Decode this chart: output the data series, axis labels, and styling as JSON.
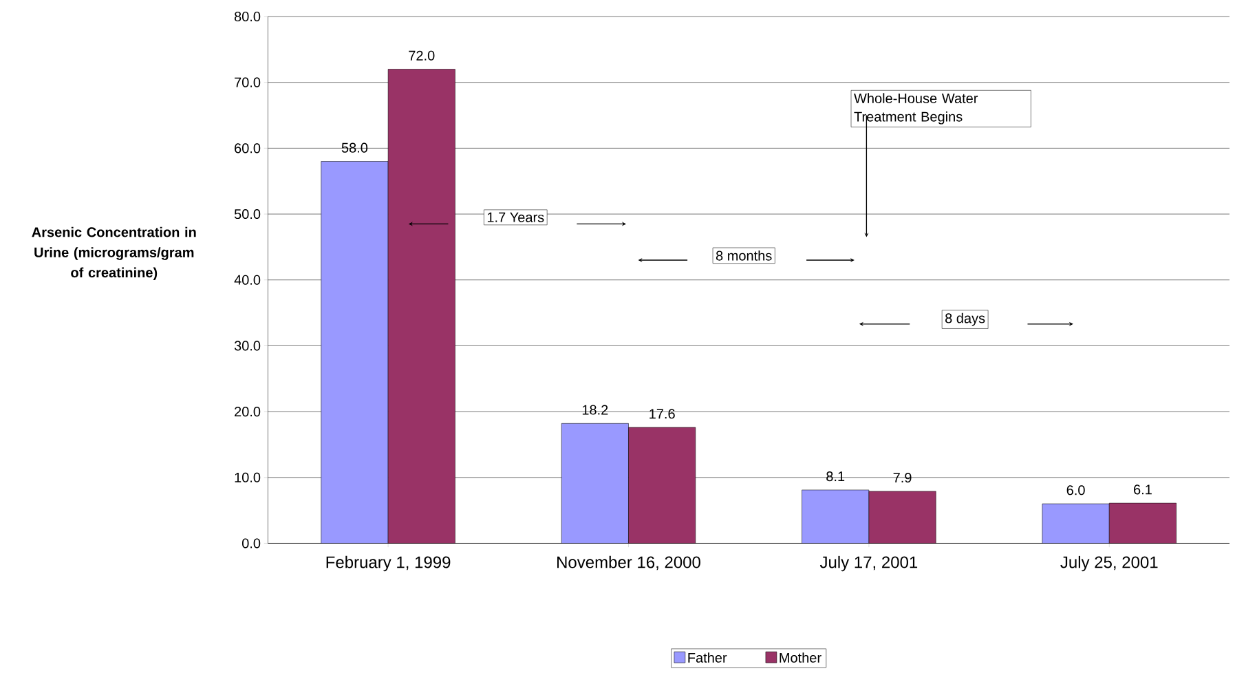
{
  "chart_data": {
    "type": "bar",
    "ylabel": "Arsenic  Concentration in Urine (micrograms/gram of creatinine)",
    "categories": [
      "February 1, 1999",
      "November 16, 2000",
      "July 17, 2001",
      "July 25, 2001"
    ],
    "series": [
      {
        "name": "Father",
        "color": "#9999ff",
        "values": [
          58.0,
          18.2,
          8.1,
          6.0
        ],
        "value_labels": [
          "58.0",
          "18.2",
          "8.1",
          "6.0"
        ]
      },
      {
        "name": "Mother",
        "color": "#993366",
        "values": [
          72.0,
          17.6,
          7.9,
          6.1
        ],
        "value_labels": [
          "72.0",
          "17.6",
          "7.9",
          "6.1"
        ]
      }
    ],
    "ylim": [
      0,
      80
    ],
    "yticks": [
      {
        "value": 0,
        "label": "0.0"
      },
      {
        "value": 10,
        "label": "10.0"
      },
      {
        "value": 20,
        "label": "20.0"
      },
      {
        "value": 30,
        "label": "30.0"
      },
      {
        "value": 40,
        "label": "40.0"
      },
      {
        "value": 50,
        "label": "50.0"
      },
      {
        "value": 60,
        "label": "60.0"
      },
      {
        "value": 70,
        "label": "70.0"
      },
      {
        "value": 80,
        "label": "80.0"
      }
    ],
    "grid": "y",
    "legend": "bottom",
    "annotations": [
      "Whole-House Water Treatment Begins",
      "1.7 Years",
      "8 months",
      "8 days"
    ]
  }
}
